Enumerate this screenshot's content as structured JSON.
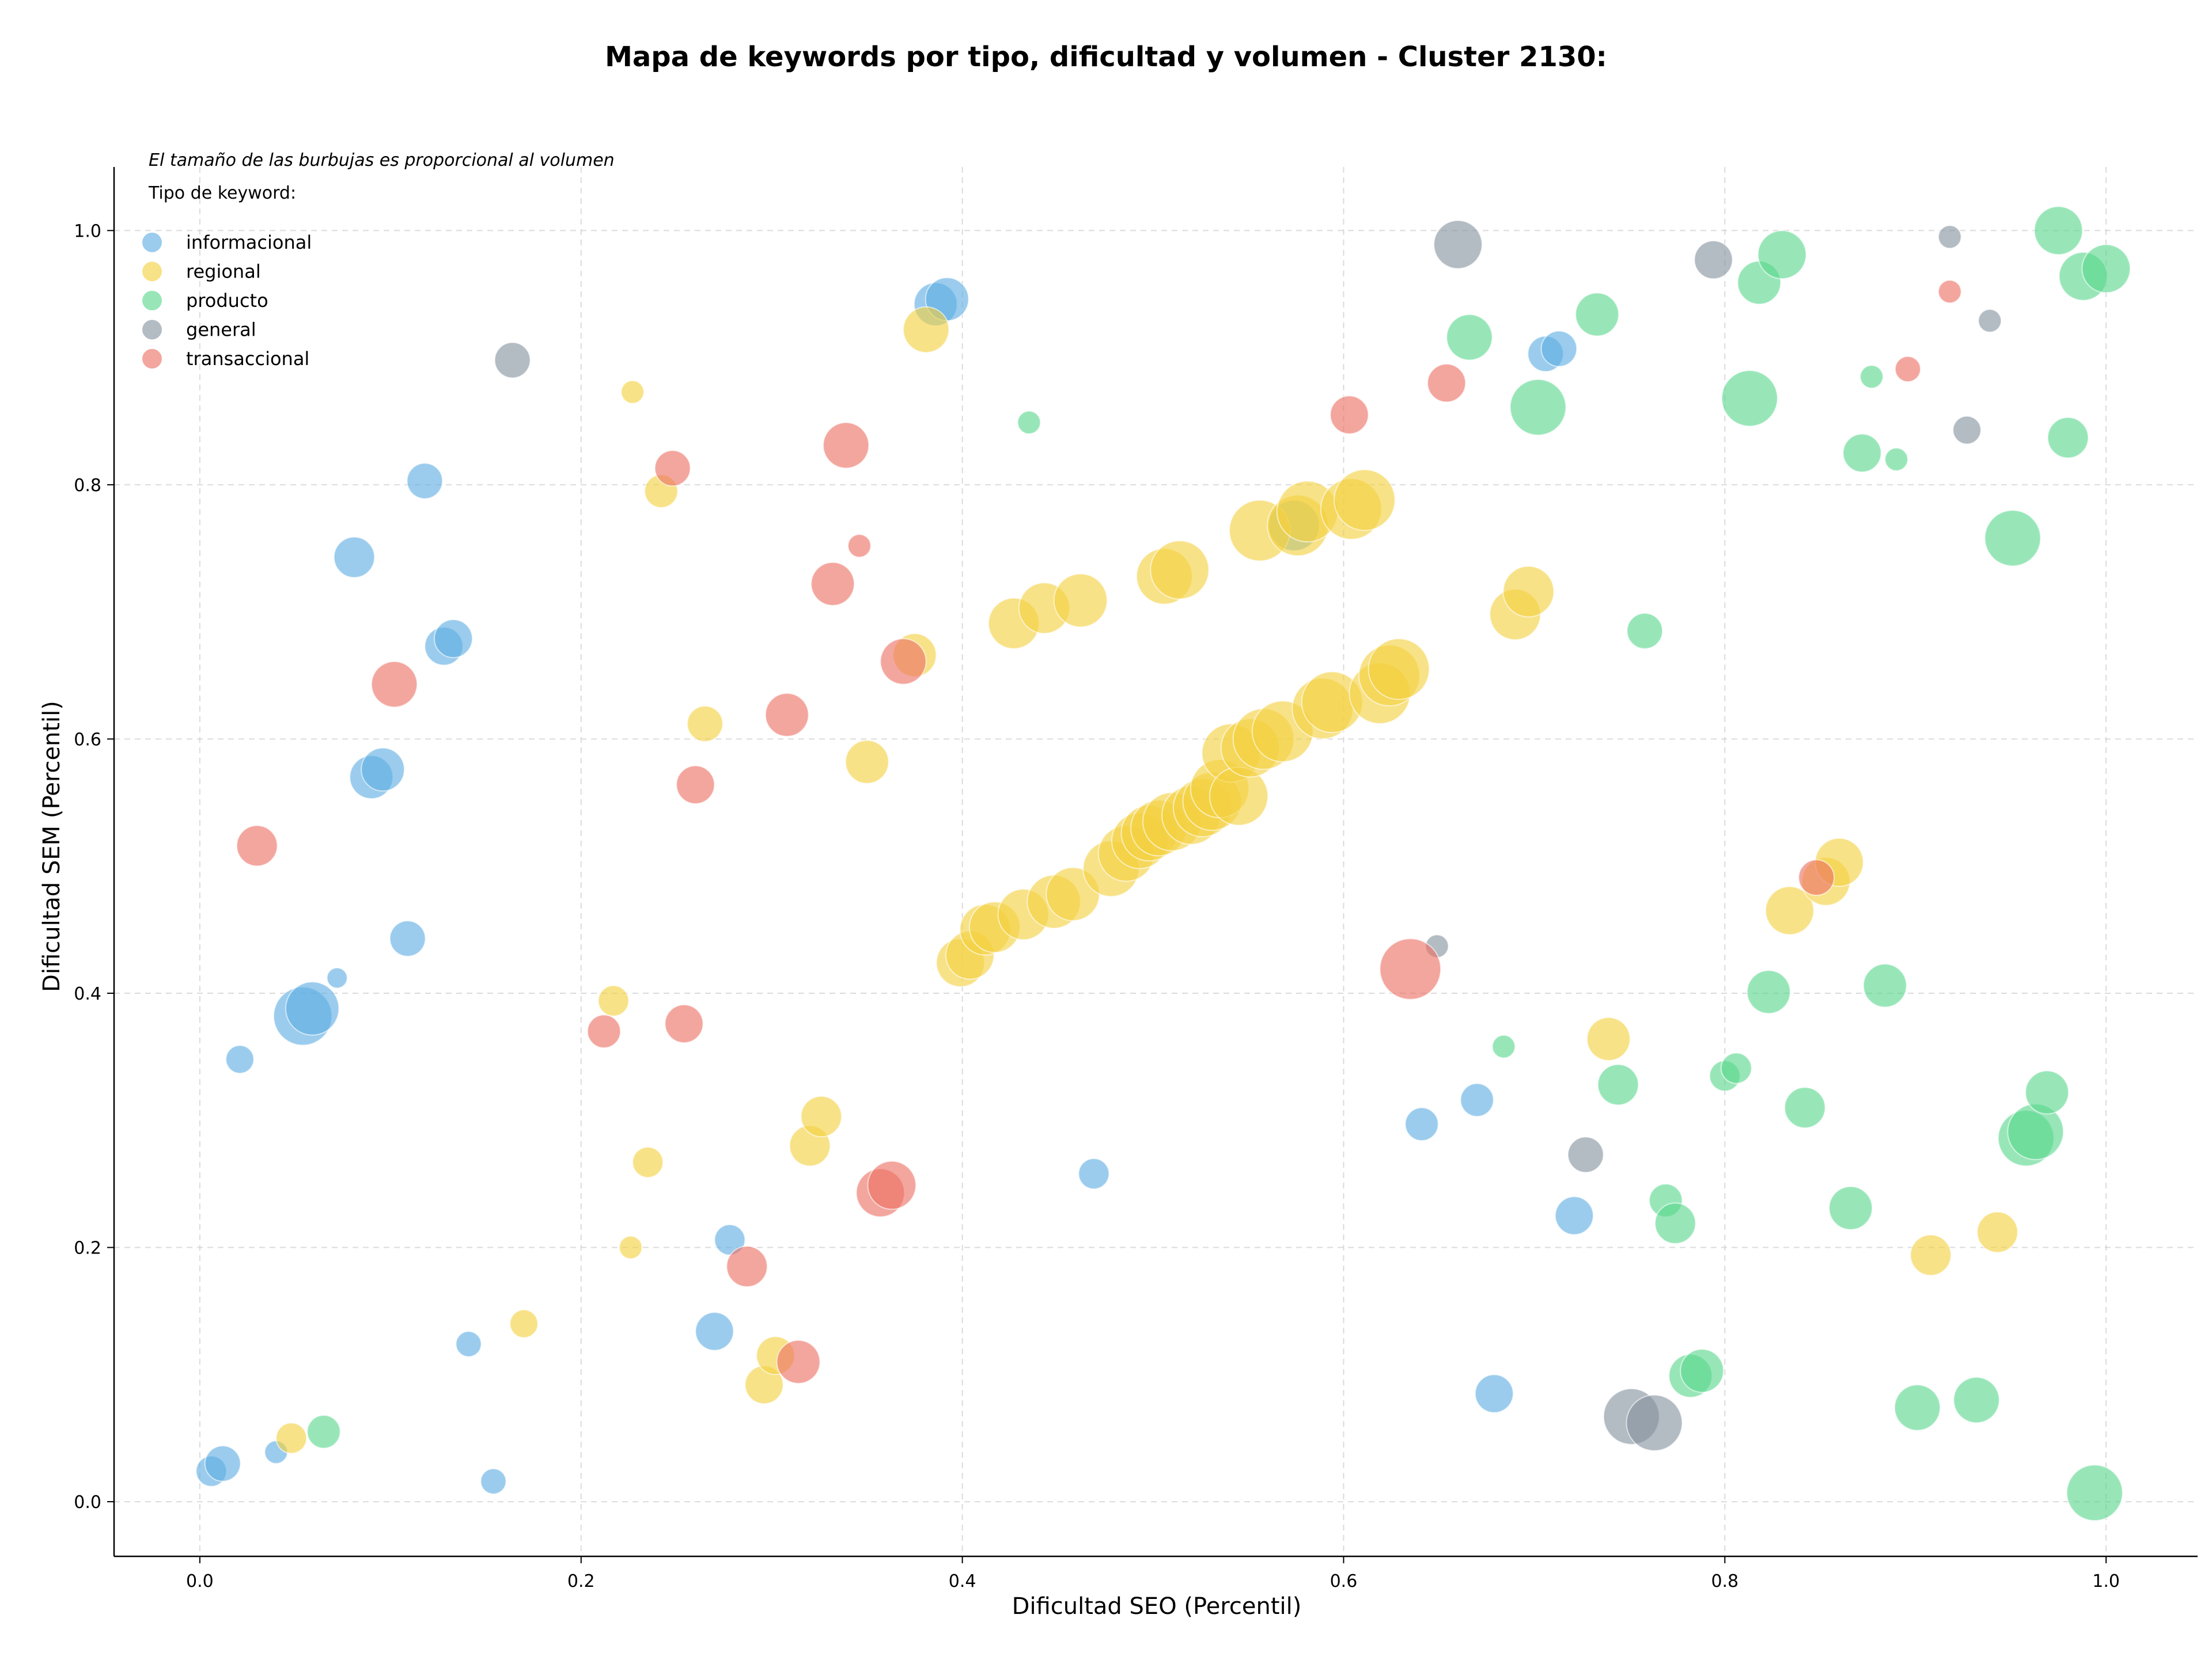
{
  "chart_data": {
    "type": "scatter",
    "title": "Mapa de keywords por tipo, dificultad y volumen - Cluster 2130:",
    "xlabel": "Dificultad SEO (Percentil)",
    "ylabel": "Dificultad SEM (Percentil)",
    "note": "El tamaño de las burbujas es proporcional al volumen",
    "legend_title": "Tipo de keyword:",
    "legend_position": "top-left",
    "xlim": [
      -0.045,
      1.048
    ],
    "ylim": [
      -0.043,
      1.05
    ],
    "xticks": [
      "0.0",
      "0.2",
      "0.4",
      "0.6",
      "0.8",
      "1.0"
    ],
    "yticks": [
      "0.0",
      "0.2",
      "0.4",
      "0.6",
      "0.8",
      "1.0"
    ],
    "grid": true,
    "series": [
      {
        "name": "informacional",
        "color": "#5DADE2",
        "points": [
          [
            0.006,
            0.024,
            12
          ],
          [
            0.012,
            0.03,
            14
          ],
          [
            0.04,
            0.039,
            9
          ],
          [
            0.021,
            0.348,
            11
          ],
          [
            0.054,
            0.382,
            23
          ],
          [
            0.059,
            0.388,
            21
          ],
          [
            0.072,
            0.412,
            8
          ],
          [
            0.081,
            0.743,
            16
          ],
          [
            0.09,
            0.57,
            17
          ],
          [
            0.096,
            0.576,
            17
          ],
          [
            0.109,
            0.443,
            14
          ],
          [
            0.118,
            0.803,
            14
          ],
          [
            0.128,
            0.673,
            15
          ],
          [
            0.133,
            0.679,
            15
          ],
          [
            0.141,
            0.124,
            10
          ],
          [
            0.154,
            0.016,
            10
          ],
          [
            0.27,
            0.134,
            15
          ],
          [
            0.278,
            0.206,
            12
          ],
          [
            0.386,
            0.942,
            17
          ],
          [
            0.392,
            0.946,
            17
          ],
          [
            0.469,
            0.258,
            12
          ],
          [
            0.574,
            0.768,
            20
          ],
          [
            0.641,
            0.297,
            13
          ],
          [
            0.67,
            0.316,
            13
          ],
          [
            0.679,
            0.085,
            15
          ],
          [
            0.706,
            0.903,
            14
          ],
          [
            0.713,
            0.907,
            14
          ],
          [
            0.721,
            0.225,
            15
          ]
        ]
      },
      {
        "name": "regional",
        "color": "#F4D03F",
        "points": [
          [
            0.048,
            0.05,
            12
          ],
          [
            0.17,
            0.14,
            11
          ],
          [
            0.217,
            0.394,
            12
          ],
          [
            0.226,
            0.2,
            9
          ],
          [
            0.227,
            0.873,
            9
          ],
          [
            0.235,
            0.267,
            12
          ],
          [
            0.242,
            0.795,
            13
          ],
          [
            0.265,
            0.612,
            14
          ],
          [
            0.296,
            0.092,
            15
          ],
          [
            0.302,
            0.115,
            15
          ],
          [
            0.32,
            0.28,
            16
          ],
          [
            0.326,
            0.303,
            16
          ],
          [
            0.35,
            0.582,
            17
          ],
          [
            0.375,
            0.666,
            17
          ],
          [
            0.381,
            0.922,
            18
          ],
          [
            0.399,
            0.424,
            19
          ],
          [
            0.404,
            0.43,
            19
          ],
          [
            0.412,
            0.45,
            20
          ],
          [
            0.417,
            0.452,
            20
          ],
          [
            0.427,
            0.691,
            20
          ],
          [
            0.432,
            0.462,
            20
          ],
          [
            0.443,
            0.703,
            20
          ],
          [
            0.448,
            0.472,
            21
          ],
          [
            0.458,
            0.478,
            21
          ],
          [
            0.462,
            0.709,
            21
          ],
          [
            0.478,
            0.498,
            22
          ],
          [
            0.486,
            0.51,
            22
          ],
          [
            0.493,
            0.52,
            22
          ],
          [
            0.498,
            0.526,
            22
          ],
          [
            0.503,
            0.53,
            22
          ],
          [
            0.506,
            0.728,
            22
          ],
          [
            0.51,
            0.535,
            23
          ],
          [
            0.514,
            0.733,
            23
          ],
          [
            0.52,
            0.54,
            23
          ],
          [
            0.526,
            0.546,
            23
          ],
          [
            0.531,
            0.551,
            23
          ],
          [
            0.535,
            0.561,
            23
          ],
          [
            0.541,
            0.589,
            23
          ],
          [
            0.545,
            0.555,
            23
          ],
          [
            0.551,
            0.593,
            23
          ],
          [
            0.556,
            0.764,
            24
          ],
          [
            0.558,
            0.6,
            24
          ],
          [
            0.568,
            0.606,
            24
          ],
          [
            0.576,
            0.768,
            24
          ],
          [
            0.581,
            0.779,
            24
          ],
          [
            0.589,
            0.624,
            24
          ],
          [
            0.594,
            0.629,
            24
          ],
          [
            0.604,
            0.781,
            24
          ],
          [
            0.611,
            0.788,
            24
          ],
          [
            0.619,
            0.636,
            24
          ],
          [
            0.624,
            0.65,
            24
          ],
          [
            0.629,
            0.655,
            24
          ],
          [
            0.69,
            0.698,
            20
          ],
          [
            0.697,
            0.716,
            20
          ],
          [
            0.739,
            0.364,
            17
          ],
          [
            0.834,
            0.465,
            19
          ],
          [
            0.853,
            0.488,
            19
          ],
          [
            0.86,
            0.503,
            19
          ],
          [
            0.908,
            0.194,
            16
          ],
          [
            0.943,
            0.212,
            16
          ]
        ]
      },
      {
        "name": "producto",
        "color": "#58D68D",
        "points": [
          [
            0.065,
            0.055,
            13
          ],
          [
            0.435,
            0.849,
            9
          ],
          [
            0.666,
            0.916,
            18
          ],
          [
            0.684,
            0.358,
            9
          ],
          [
            0.702,
            0.861,
            22
          ],
          [
            0.733,
            0.934,
            17
          ],
          [
            0.744,
            0.328,
            16
          ],
          [
            0.758,
            0.685,
            14
          ],
          [
            0.769,
            0.237,
            13
          ],
          [
            0.774,
            0.219,
            16
          ],
          [
            0.782,
            0.099,
            17
          ],
          [
            0.788,
            0.103,
            17
          ],
          [
            0.8,
            0.335,
            12
          ],
          [
            0.806,
            0.341,
            12
          ],
          [
            0.813,
            0.868,
            22
          ],
          [
            0.818,
            0.959,
            17
          ],
          [
            0.823,
            0.401,
            17
          ],
          [
            0.83,
            0.981,
            19
          ],
          [
            0.842,
            0.31,
            16
          ],
          [
            0.866,
            0.231,
            17
          ],
          [
            0.872,
            0.825,
            15
          ],
          [
            0.877,
            0.885,
            9
          ],
          [
            0.884,
            0.406,
            17
          ],
          [
            0.89,
            0.82,
            9
          ],
          [
            0.901,
            0.074,
            18
          ],
          [
            0.932,
            0.08,
            18
          ],
          [
            0.951,
            0.758,
            22
          ],
          [
            0.958,
            0.286,
            22
          ],
          [
            0.963,
            0.291,
            22
          ],
          [
            0.969,
            0.322,
            17
          ],
          [
            0.975,
            1.0,
            19
          ],
          [
            0.98,
            0.837,
            16
          ],
          [
            0.988,
            0.964,
            19
          ],
          [
            0.994,
            0.007,
            22
          ],
          [
            1.0,
            0.97,
            19
          ]
        ]
      },
      {
        "name": "general",
        "color": "#85929E",
        "points": [
          [
            0.164,
            0.898,
            14
          ],
          [
            0.649,
            0.437,
            9
          ],
          [
            0.66,
            0.989,
            19
          ],
          [
            0.727,
            0.273,
            14
          ],
          [
            0.751,
            0.067,
            22
          ],
          [
            0.763,
            0.062,
            22
          ],
          [
            0.794,
            0.977,
            15
          ],
          [
            0.918,
            0.995,
            9
          ],
          [
            0.927,
            0.843,
            11
          ],
          [
            0.939,
            0.929,
            9
          ]
        ]
      },
      {
        "name": "transaccional",
        "color": "#EC7063",
        "points": [
          [
            0.03,
            0.516,
            16
          ],
          [
            0.102,
            0.643,
            18
          ],
          [
            0.212,
            0.37,
            13
          ],
          [
            0.248,
            0.813,
            14
          ],
          [
            0.254,
            0.376,
            15
          ],
          [
            0.26,
            0.564,
            15
          ],
          [
            0.287,
            0.185,
            16
          ],
          [
            0.308,
            0.619,
            17
          ],
          [
            0.314,
            0.11,
            17
          ],
          [
            0.332,
            0.722,
            17
          ],
          [
            0.339,
            0.831,
            18
          ],
          [
            0.346,
            0.752,
            9
          ],
          [
            0.357,
            0.243,
            19
          ],
          [
            0.363,
            0.249,
            19
          ],
          [
            0.369,
            0.661,
            18
          ],
          [
            0.603,
            0.855,
            15
          ],
          [
            0.635,
            0.419,
            24
          ],
          [
            0.654,
            0.88,
            15
          ],
          [
            0.848,
            0.491,
            14
          ],
          [
            0.896,
            0.891,
            10
          ],
          [
            0.918,
            0.952,
            9
          ]
        ]
      }
    ]
  }
}
